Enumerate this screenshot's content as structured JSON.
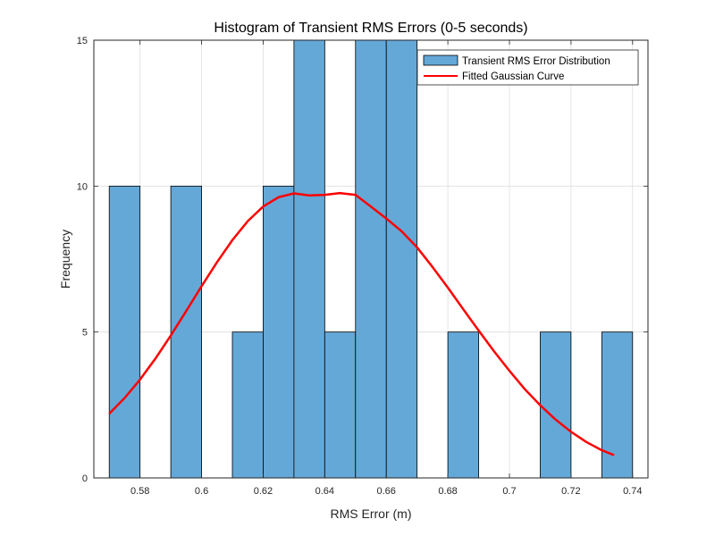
{
  "chart_data": {
    "type": "bar",
    "title": "Histogram of Transient RMS Errors (0-5 seconds)",
    "xlabel": "RMS Error (m)",
    "ylabel": "Frequency",
    "xlim": [
      0.565,
      0.745
    ],
    "ylim": [
      0,
      15
    ],
    "xticks": [
      0.58,
      0.6,
      0.62,
      0.64,
      0.66,
      0.68,
      0.7,
      0.72,
      0.74
    ],
    "xtick_labels": [
      "0.58",
      "0.6",
      "0.62",
      "0.64",
      "0.66",
      "0.68",
      "0.7",
      "0.72",
      "0.74"
    ],
    "yticks": [
      0,
      5,
      10,
      15
    ],
    "ytick_labels": [
      "0",
      "5",
      "10",
      "15"
    ],
    "grid": true,
    "legend_position": "top-right",
    "series": [
      {
        "name": "Transient RMS Error Distribution",
        "kind": "histogram",
        "color": "#64a8d8",
        "edge_color": "#000000",
        "bins": [
          {
            "x0": 0.57,
            "x1": 0.58,
            "count": 10
          },
          {
            "x0": 0.58,
            "x1": 0.59,
            "count": 0
          },
          {
            "x0": 0.59,
            "x1": 0.6,
            "count": 10
          },
          {
            "x0": 0.6,
            "x1": 0.61,
            "count": 0
          },
          {
            "x0": 0.61,
            "x1": 0.62,
            "count": 5
          },
          {
            "x0": 0.62,
            "x1": 0.63,
            "count": 10
          },
          {
            "x0": 0.63,
            "x1": 0.64,
            "count": 15
          },
          {
            "x0": 0.64,
            "x1": 0.65,
            "count": 5
          },
          {
            "x0": 0.65,
            "x1": 0.66,
            "count": 15
          },
          {
            "x0": 0.66,
            "x1": 0.67,
            "count": 15
          },
          {
            "x0": 0.67,
            "x1": 0.68,
            "count": 0
          },
          {
            "x0": 0.68,
            "x1": 0.69,
            "count": 5
          },
          {
            "x0": 0.69,
            "x1": 0.7,
            "count": 0
          },
          {
            "x0": 0.7,
            "x1": 0.71,
            "count": 0
          },
          {
            "x0": 0.71,
            "x1": 0.72,
            "count": 5
          },
          {
            "x0": 0.72,
            "x1": 0.73,
            "count": 0
          },
          {
            "x0": 0.73,
            "x1": 0.74,
            "count": 5
          }
        ]
      },
      {
        "name": "Fitted Gaussian Curve",
        "kind": "line",
        "color": "#ff0000",
        "x": [
          0.57,
          0.575,
          0.58,
          0.585,
          0.59,
          0.595,
          0.6,
          0.605,
          0.61,
          0.615,
          0.62,
          0.625,
          0.63,
          0.635,
          0.64,
          0.645,
          0.65,
          0.655,
          0.66,
          0.665,
          0.67,
          0.675,
          0.68,
          0.685,
          0.69,
          0.695,
          0.7,
          0.705,
          0.71,
          0.715,
          0.72,
          0.725,
          0.73,
          0.734
        ],
        "y": [
          2.2,
          2.74,
          3.37,
          4.09,
          4.88,
          5.72,
          6.57,
          7.39,
          8.15,
          8.8,
          9.3,
          9.62,
          9.75,
          9.68,
          9.7,
          9.76,
          9.7,
          9.3,
          8.89,
          8.45,
          7.9,
          7.23,
          6.52,
          5.78,
          5.05,
          4.34,
          3.67,
          3.04,
          2.49,
          2.0,
          1.58,
          1.23,
          0.95,
          0.78
        ]
      }
    ]
  }
}
